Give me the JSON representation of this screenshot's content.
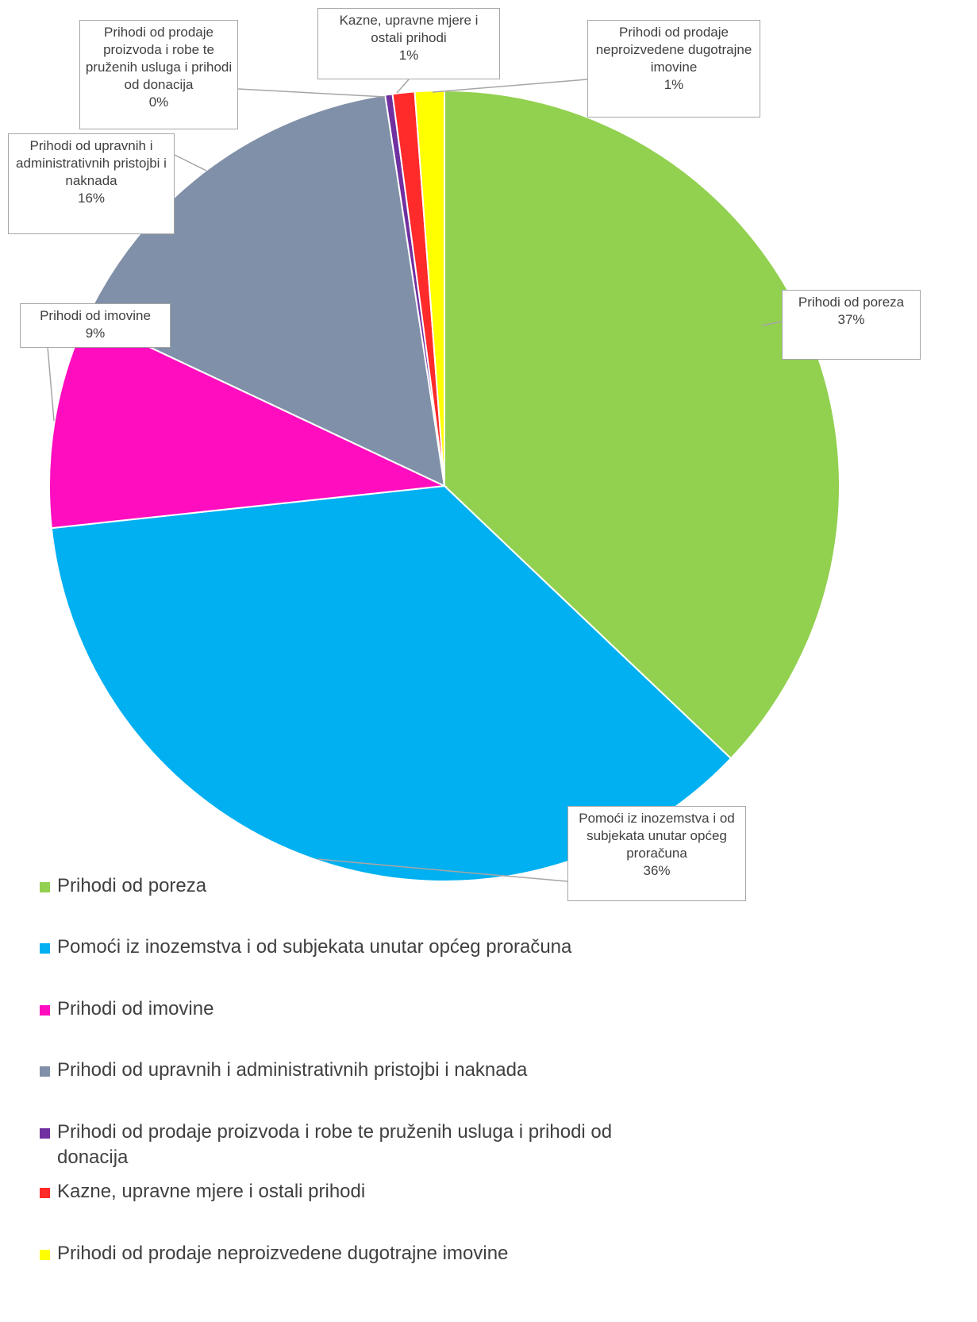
{
  "chart_data": {
    "type": "pie",
    "categories": [
      "Prihodi od poreza",
      "Pomoći iz inozemstva i od subjekata unutar općeg proračuna",
      "Prihodi od imovine",
      "Prihodi od upravnih i administrativnih pristojbi i naknada",
      "Prihodi od prodaje proizvoda i robe te pruženih usluga i prihodi od donacija",
      "Kazne, upravne mjere i ostali prihodi",
      "Prihodi od prodaje neproizvedene dugotrajne imovine"
    ],
    "values": [
      37.1,
      36.2,
      8.7,
      15.6,
      0.3,
      0.9,
      1.2
    ],
    "value_labels": [
      "37%",
      "36%",
      "9%",
      "16%",
      "0%",
      "1%",
      "1%"
    ],
    "colors": [
      "#92d050",
      "#00b0f0",
      "#ff0dbf",
      "#8090a8",
      "#7030a0",
      "#ff2a2a",
      "#ffff00"
    ],
    "legend": "bottom"
  }
}
